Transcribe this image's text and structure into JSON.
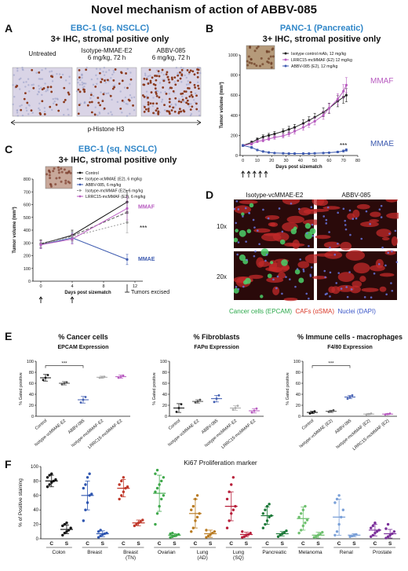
{
  "title": "Novel mechanism of action of ABBV-085",
  "panel_labels": {
    "a": "A",
    "b": "B",
    "c": "C",
    "d": "D",
    "e": "E",
    "f": "F"
  },
  "panel_a": {
    "heading1": "EBC-1 (sq. NSCLC)",
    "heading2": "3+ IHC, stromal positive only",
    "images": [
      {
        "label": "Untreated"
      },
      {
        "label": "Isotype-MMAE-E2\n6 mg/kg, 72 h"
      },
      {
        "label": "ABBV-085\n6 mg/kg, 72 h"
      }
    ],
    "footer": "p-Histone H3"
  },
  "chart_data": [
    {
      "id": "B",
      "type": "line",
      "title": "PANC-1 (Pancreatic)",
      "subtitle": "3+ IHC, stromal positive only",
      "xlabel": "Days post sizematch",
      "ylabel": "Tumor volume (mm³)",
      "xticks": [
        0,
        10,
        20,
        30,
        40,
        50,
        60,
        70,
        80
      ],
      "yticks": [
        0,
        200,
        400,
        600,
        800,
        1000
      ],
      "xlim": [
        -2,
        80
      ],
      "ylim": [
        0,
        1000
      ],
      "dosing_days": [
        0,
        4,
        8,
        12,
        16
      ],
      "annotation": "***",
      "series": [
        {
          "name": "Isotype control mAb, 12 mg/kg",
          "color": "#222222",
          "x": [
            0,
            6,
            10,
            14,
            18,
            22,
            28,
            32,
            36,
            42,
            46,
            50,
            56,
            60,
            66,
            70,
            72
          ],
          "y": [
            100,
            130,
            160,
            185,
            200,
            215,
            240,
            260,
            280,
            320,
            350,
            380,
            430,
            470,
            540,
            580,
            600
          ],
          "err": [
            10,
            15,
            15,
            20,
            20,
            25,
            25,
            30,
            30,
            35,
            35,
            40,
            45,
            50,
            55,
            60,
            65
          ]
        },
        {
          "name": "LRRC15-mcMMAF (E2) 12 mg/kg",
          "color": "#b85cc0",
          "x": [
            0,
            6,
            10,
            14,
            18,
            22,
            28,
            32,
            36,
            42,
            46,
            50,
            56,
            60,
            66,
            70,
            72
          ],
          "y": [
            100,
            115,
            140,
            150,
            165,
            180,
            195,
            215,
            240,
            280,
            310,
            340,
            400,
            470,
            560,
            640,
            700
          ],
          "err": [
            10,
            12,
            12,
            15,
            15,
            18,
            20,
            22,
            25,
            28,
            30,
            35,
            40,
            45,
            55,
            65,
            75
          ]
        },
        {
          "name": "ABBV-085 (E2), 12 mg/kg",
          "color": "#3e5bb0",
          "x": [
            0,
            6,
            10,
            14,
            18,
            22,
            28,
            32,
            36,
            42,
            46,
            50,
            56,
            60,
            66,
            70,
            72
          ],
          "y": [
            100,
            80,
            55,
            40,
            30,
            25,
            22,
            20,
            20,
            20,
            20,
            22,
            25,
            28,
            35,
            45,
            55
          ],
          "err": [
            10,
            10,
            8,
            6,
            5,
            5,
            5,
            5,
            5,
            5,
            5,
            5,
            5,
            6,
            8,
            10,
            12
          ]
        }
      ],
      "side_labels": [
        {
          "text": "MMAF",
          "color": "#b85cc0"
        },
        {
          "text": "MMAE",
          "color": "#3e5bb0"
        }
      ]
    },
    {
      "id": "C",
      "type": "line",
      "title": "EBC-1 (sq. NSCLC)",
      "subtitle": "3+ IHC, stromal positive only",
      "xlabel": "Days post sizematch",
      "ylabel": "Tumor volume (mm³)",
      "xticks": [
        0,
        4,
        8,
        12
      ],
      "yticks": [
        0,
        100,
        200,
        300,
        400,
        500,
        600,
        700,
        800
      ],
      "xlim": [
        -1,
        13
      ],
      "ylim": [
        0,
        800
      ],
      "dosing_days": [
        0,
        4
      ],
      "annotation": "***",
      "excised_label": "Tumors excised",
      "series": [
        {
          "name": "Control",
          "color": "#111111",
          "dash": "",
          "x": [
            0,
            4,
            11
          ],
          "y": [
            290,
            360,
            620
          ],
          "err": [
            30,
            40,
            90
          ]
        },
        {
          "name": "Isotype-vcMMAE (E2), 6 mg/kg",
          "color": "#555555",
          "dash": "4,2",
          "x": [
            0,
            4,
            11
          ],
          "y": [
            295,
            355,
            540
          ],
          "err": [
            30,
            35,
            80
          ]
        },
        {
          "name": "ABBV-085, 6 mg/kg",
          "color": "#3e5bb0",
          "dash": "",
          "x": [
            0,
            4,
            11
          ],
          "y": [
            285,
            340,
            170
          ],
          "err": [
            30,
            40,
            40
          ]
        },
        {
          "name": "Isotype-mcMMAF (E2), 6 mg/kg",
          "color": "#999999",
          "dash": "2,2",
          "x": [
            0,
            4,
            11
          ],
          "y": [
            290,
            350,
            460
          ],
          "err": [
            30,
            40,
            80
          ]
        },
        {
          "name": "LRRC15-mcMMAF (E2), 6 mg/kg",
          "color": "#b85cc0",
          "dash": "",
          "x": [
            0,
            4,
            11
          ],
          "y": [
            285,
            330,
            570
          ],
          "err": [
            30,
            40,
            90
          ]
        }
      ],
      "side_labels": [
        {
          "text": "MMAF",
          "color": "#b85cc0"
        },
        {
          "text": "MMAE",
          "color": "#3e5bb0"
        }
      ]
    },
    {
      "id": "E1",
      "type": "scatter",
      "title": "% Cancer cells",
      "subtitle": "EPCAM Expression",
      "ylabel": "% Gated positive",
      "yticks": [
        0,
        20,
        40,
        60,
        80,
        100
      ],
      "ylim": [
        0,
        100
      ],
      "categories": [
        "Control",
        "Isotype-vcMMAE-E2",
        "ABBV-085",
        "Isotype-mcMMAF-E2",
        "LRRC15-mcMMAF-E2"
      ],
      "colors": [
        "#111111",
        "#555555",
        "#3e5bb0",
        "#aaaaaa",
        "#b85cc0"
      ],
      "means": [
        70,
        60,
        30,
        71,
        72
      ],
      "sd": [
        6,
        3,
        6,
        2,
        3
      ],
      "points": [
        [
          66,
          70,
          75
        ],
        [
          58,
          60,
          62
        ],
        [
          25,
          30,
          35
        ],
        [
          70,
          71,
          72
        ],
        [
          70,
          72,
          74
        ]
      ],
      "annotation": "***"
    },
    {
      "id": "E2",
      "type": "scatter",
      "title": "% Fibroblasts",
      "subtitle": "FAPα Expression",
      "ylabel": "% Gated positive",
      "yticks": [
        0,
        20,
        40,
        60,
        80,
        100
      ],
      "ylim": [
        0,
        100
      ],
      "categories": [
        "Control",
        "Isotype-vcMMAE-E2",
        "ABBV-085",
        "Isotype-mcMMAF-E2",
        "LRRC15-mcMMAF-E2"
      ],
      "colors": [
        "#111111",
        "#555555",
        "#3e5bb0",
        "#aaaaaa",
        "#b85cc0"
      ],
      "means": [
        15,
        27,
        32,
        15,
        10
      ],
      "sd": [
        8,
        3,
        6,
        4,
        4
      ],
      "points": [
        [
          8,
          15,
          22
        ],
        [
          25,
          27,
          30
        ],
        [
          26,
          32,
          38
        ],
        [
          12,
          15,
          19
        ],
        [
          7,
          10,
          14
        ]
      ]
    },
    {
      "id": "E3",
      "type": "scatter",
      "title": "% Immune cells - macrophages",
      "subtitle": "F4/80 Expression",
      "ylabel": "% Gated positive",
      "yticks": [
        0,
        20,
        40,
        60,
        80,
        100
      ],
      "ylim": [
        0,
        100
      ],
      "categories": [
        "Control",
        "Isotype-vcMMAE (E2)",
        "ABBV-085",
        "Isotype-mcMMAF (E2)",
        "LRRC15-mcMMAF (E2)"
      ],
      "colors": [
        "#111111",
        "#555555",
        "#3e5bb0",
        "#aaaaaa",
        "#b85cc0"
      ],
      "means": [
        7,
        9,
        35,
        4,
        4
      ],
      "sd": [
        2,
        2,
        3,
        1,
        1
      ],
      "points": [
        [
          5,
          7,
          9
        ],
        [
          8,
          9,
          11
        ],
        [
          32,
          35,
          38
        ],
        [
          3,
          4,
          5
        ],
        [
          3,
          4,
          5
        ]
      ],
      "annotation": "***"
    },
    {
      "id": "F",
      "type": "scatter",
      "title": "Ki67 Proliferation marker",
      "ylabel": "% of Positive staining",
      "yticks": [
        0,
        20,
        40,
        60,
        80,
        100
      ],
      "ylim": [
        0,
        100
      ],
      "groups": [
        "Colon",
        "Breast",
        "Breast\n(TN)",
        "Ovarian",
        "Lung\n(AD)",
        "Lung\n(SQ)",
        "Pancreatic",
        "Melanoma",
        "Renal",
        "Prostate"
      ],
      "subcats": [
        "C",
        "S"
      ],
      "colors": [
        "#111111",
        "#2f56b0",
        "#c0392b",
        "#3ea84a",
        "#b87a20",
        "#b81f3a",
        "#1e7a3a",
        "#6ec06e",
        "#7aa0d8",
        "#7a2f9a"
      ],
      "means": [
        [
          80,
          13
        ],
        [
          60,
          7
        ],
        [
          70,
          22
        ],
        [
          63,
          5
        ],
        [
          35,
          7
        ],
        [
          45,
          6
        ],
        [
          32,
          7
        ],
        [
          28,
          5
        ],
        [
          30,
          5
        ],
        [
          12,
          7
        ]
      ],
      "sd": [
        [
          8,
          6
        ],
        [
          20,
          4
        ],
        [
          12,
          4
        ],
        [
          25,
          2
        ],
        [
          20,
          5
        ],
        [
          20,
          3
        ],
        [
          12,
          3
        ],
        [
          16,
          4
        ],
        [
          25,
          2
        ],
        [
          8,
          6
        ]
      ],
      "points": [
        [
          [
            72,
            75,
            78,
            80,
            82,
            85,
            88,
            90
          ],
          [
            5,
            8,
            10,
            12,
            15,
            18,
            20,
            22
          ]
        ],
        [
          [
            25,
            40,
            50,
            60,
            62,
            70,
            75,
            85,
            90
          ],
          [
            2,
            4,
            6,
            7,
            8,
            10,
            12
          ]
        ],
        [
          [
            55,
            60,
            65,
            70,
            72,
            75,
            80,
            85
          ],
          [
            18,
            20,
            22,
            24,
            26
          ]
        ],
        [
          [
            20,
            35,
            45,
            55,
            60,
            65,
            70,
            75,
            80,
            85,
            90,
            95
          ],
          [
            2,
            3,
            4,
            5,
            6,
            7,
            8
          ]
        ],
        [
          [
            10,
            15,
            25,
            30,
            35,
            40,
            45,
            55,
            60
          ],
          [
            2,
            4,
            6,
            8,
            10,
            12
          ]
        ],
        [
          [
            15,
            25,
            35,
            40,
            45,
            55,
            65,
            75,
            85
          ],
          [
            2,
            3,
            5,
            6,
            8,
            10
          ]
        ],
        [
          [
            15,
            20,
            25,
            30,
            32,
            35,
            40,
            45,
            48
          ],
          [
            3,
            5,
            7,
            9,
            11
          ]
        ],
        [
          [
            8,
            12,
            18,
            22,
            26,
            30,
            35,
            40,
            45
          ],
          [
            2,
            3,
            5,
            7,
            9
          ]
        ],
        [
          [
            5,
            10,
            20,
            30,
            40,
            50,
            55,
            60
          ],
          [
            3,
            4,
            5,
            6
          ]
        ],
        [
          [
            3,
            5,
            8,
            10,
            12,
            15,
            18,
            22
          ],
          [
            1,
            3,
            5,
            7,
            10,
            14,
            20
          ]
        ]
      ]
    }
  ],
  "panel_d": {
    "col1": "Isotype-vcMMAE-E2",
    "col2": "ABBV-085",
    "row1": "10x",
    "row2": "20x",
    "legend": [
      {
        "text": "Cancer cells (EPCAM)",
        "color": "#2aa84a"
      },
      {
        "text": "CAFs (αSMA)",
        "color": "#d93a2a"
      },
      {
        "text": "Nuclei (DAPI)",
        "color": "#3a56c8"
      }
    ]
  }
}
